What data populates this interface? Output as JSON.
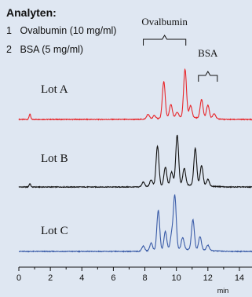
{
  "legend": {
    "title": "Analyten:",
    "items": [
      {
        "num": "1",
        "label": "Ovalbumin (10 mg/ml)"
      },
      {
        "num": "2",
        "label": "BSA (5 mg/ml)"
      }
    ]
  },
  "chart_data": {
    "type": "line",
    "xlabel": "min",
    "xlim": [
      0,
      14.8
    ],
    "xticks": [
      0,
      2,
      4,
      6,
      8,
      10,
      12,
      14
    ],
    "annotations": [
      {
        "text": "Ovalbumin",
        "x_start": 7.9,
        "x_end": 10.6
      },
      {
        "text": "BSA",
        "x_start": 11.4,
        "x_end": 12.6
      }
    ],
    "series": [
      {
        "name": "Lot A",
        "color": "#e8262a",
        "peaks": [
          [
            0.7,
            8
          ],
          [
            8.2,
            7
          ],
          [
            8.6,
            5
          ],
          [
            9.2,
            55
          ],
          [
            9.65,
            20
          ],
          [
            10.05,
            8
          ],
          [
            10.55,
            72
          ],
          [
            10.9,
            18
          ],
          [
            11.6,
            28
          ],
          [
            12.0,
            20
          ],
          [
            12.4,
            8
          ]
        ]
      },
      {
        "name": "Lot B",
        "color": "#111111",
        "peaks": [
          [
            0.7,
            5
          ],
          [
            7.9,
            7
          ],
          [
            8.4,
            10
          ],
          [
            8.8,
            60
          ],
          [
            9.3,
            28
          ],
          [
            9.7,
            20
          ],
          [
            10.05,
            75
          ],
          [
            10.5,
            25
          ],
          [
            11.2,
            55
          ],
          [
            11.6,
            30
          ],
          [
            12.0,
            10
          ]
        ]
      },
      {
        "name": "Lot C",
        "color": "#3a5ca8",
        "peaks": [
          [
            7.9,
            8
          ],
          [
            8.4,
            12
          ],
          [
            8.85,
            60
          ],
          [
            9.3,
            28
          ],
          [
            9.7,
            22
          ],
          [
            9.9,
            80
          ],
          [
            10.4,
            18
          ],
          [
            11.05,
            45
          ],
          [
            11.5,
            20
          ],
          [
            12.0,
            8
          ]
        ]
      }
    ]
  }
}
